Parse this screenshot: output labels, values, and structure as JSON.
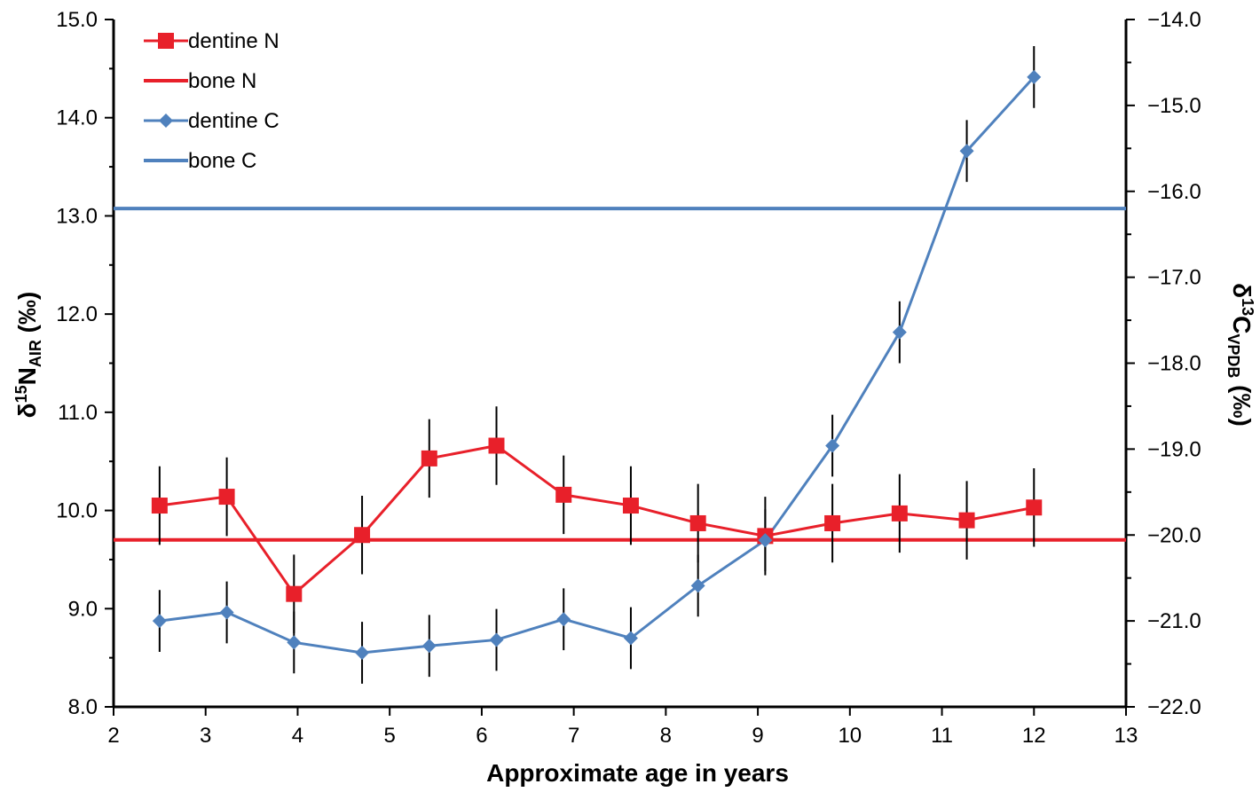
{
  "chart_data": {
    "type": "line",
    "title": "",
    "xlabel": "Approximate age in years",
    "ylabel_left": {
      "main": "δ",
      "sup": "15",
      "mid": "N",
      "sub": "AIR",
      "end": " (‰)"
    },
    "ylabel_right": {
      "main": "δ",
      "sup": "13",
      "mid": "C",
      "sub": "VPDB",
      "end": " (‰)"
    },
    "xlim": [
      2,
      13
    ],
    "ylim_left": [
      8.0,
      15.0
    ],
    "ylim_right": [
      -22.0,
      -14.0
    ],
    "x_ticks": [
      "2",
      "3",
      "4",
      "5",
      "6",
      "7",
      "8",
      "9",
      "10",
      "11",
      "12",
      "13"
    ],
    "y_left_ticks": [
      "8.0",
      "9.0",
      "10.0",
      "11.0",
      "12.0",
      "13.0",
      "14.0",
      "15.0"
    ],
    "y_right_ticks": [
      "-22.0",
      "-21.0",
      "-20.0",
      "-19.0",
      "-18.0",
      "-17.0",
      "-16.0",
      "-15.0",
      "-14.0"
    ],
    "legend_position": "top-left",
    "grid": false,
    "series": [
      {
        "name": "dentine N",
        "axis": "left",
        "color": "#e8202a",
        "marker": "square",
        "error": 0.4,
        "x": [
          2.5,
          3.23,
          3.96,
          4.7,
          5.43,
          6.16,
          6.89,
          7.62,
          8.35,
          9.08,
          9.81,
          10.54,
          11.27,
          12.0
        ],
        "y": [
          10.05,
          10.14,
          9.15,
          9.75,
          10.53,
          10.66,
          10.16,
          10.05,
          9.87,
          9.74,
          9.87,
          9.97,
          9.9,
          10.03
        ]
      },
      {
        "name": "bone N",
        "axis": "left",
        "color": "#e8202a",
        "constant": 9.7
      },
      {
        "name": "dentine C",
        "axis": "right",
        "color": "#4f81bd",
        "marker": "diamond",
        "error": 0.36,
        "x": [
          2.5,
          3.23,
          3.96,
          4.7,
          5.43,
          6.16,
          6.89,
          7.62,
          8.35,
          9.08,
          9.81,
          10.54,
          11.27,
          12.0
        ],
        "y": [
          -21.0,
          -20.9,
          -21.25,
          -21.37,
          -21.29,
          -21.22,
          -20.98,
          -21.2,
          -20.59,
          -20.06,
          -18.96,
          -17.64,
          -15.53,
          -14.67
        ]
      },
      {
        "name": "bone C",
        "axis": "right",
        "color": "#4f81bd",
        "constant": -16.2
      }
    ]
  }
}
